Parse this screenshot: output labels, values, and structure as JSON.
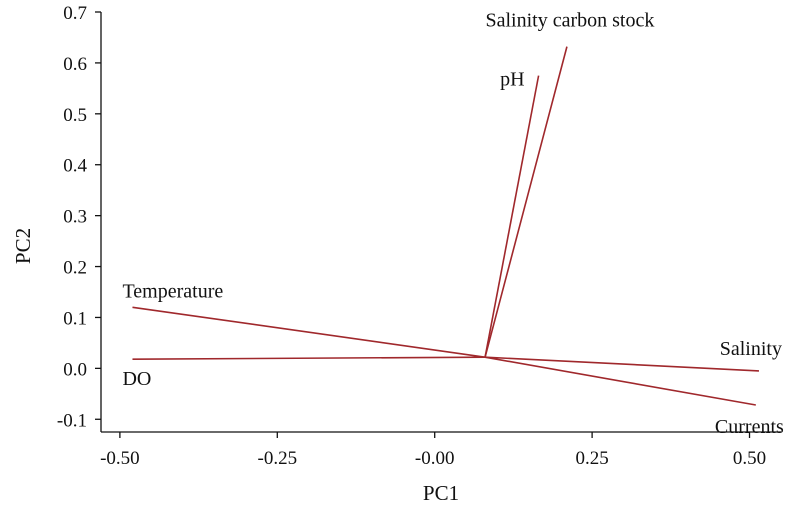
{
  "chart_data": {
    "type": "line",
    "xlabel": "PC1",
    "ylabel": "PC2",
    "xlim": [
      -0.53,
      0.55
    ],
    "ylim": [
      -0.125,
      0.7
    ],
    "x_ticks": [
      -0.5,
      -0.25,
      0.0,
      0.25,
      0.5
    ],
    "x_tick_labels": [
      "-0.50",
      "-0.25",
      "-0.00",
      "0.25",
      "0.50"
    ],
    "y_ticks": [
      -0.1,
      0.0,
      0.1,
      0.2,
      0.3,
      0.4,
      0.5,
      0.6,
      0.7
    ],
    "y_tick_labels": [
      "-0.1",
      "0.0",
      "0.1",
      "0.2",
      "0.3",
      "0.4",
      "0.5",
      "0.6",
      "0.7"
    ],
    "grid": false,
    "line_color": "#a0282c",
    "origin": {
      "x": 0.08,
      "y": 0.022
    },
    "vectors": [
      {
        "name": "Salinity carbon stock",
        "x": 0.21,
        "y": 0.632
      },
      {
        "name": "pH",
        "x": 0.165,
        "y": 0.575
      },
      {
        "name": "Temperature",
        "x": -0.48,
        "y": 0.12
      },
      {
        "name": "DO",
        "x": -0.48,
        "y": 0.018
      },
      {
        "name": "Salinity",
        "x": 0.515,
        "y": -0.005
      },
      {
        "name": "Currents",
        "x": 0.51,
        "y": -0.072
      }
    ]
  }
}
